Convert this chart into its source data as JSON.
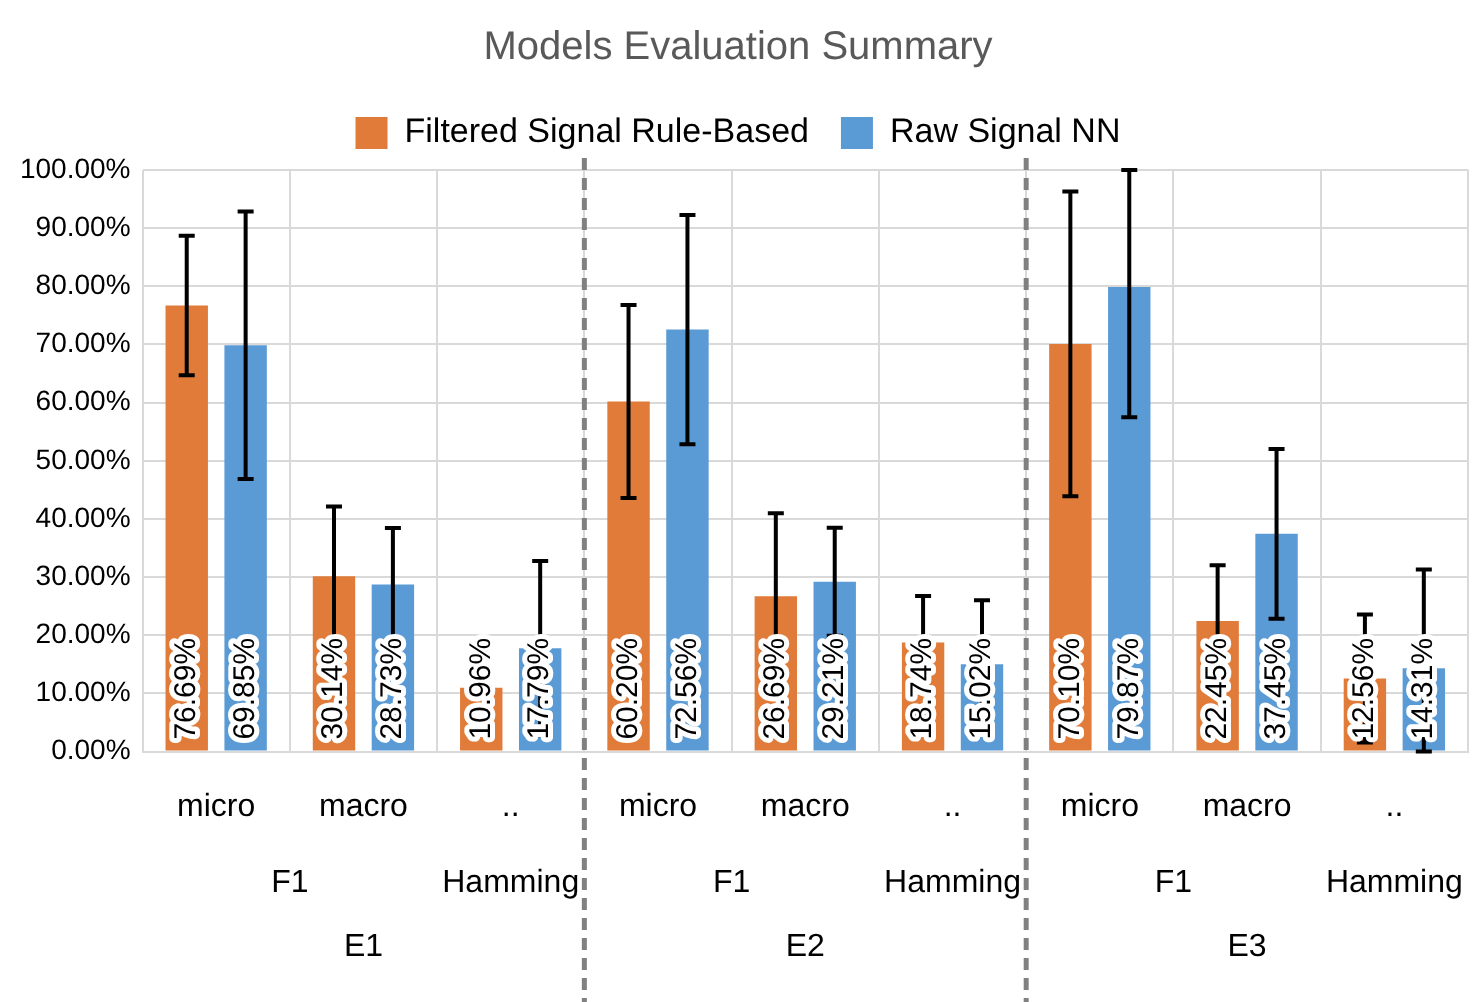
{
  "chart_data": {
    "type": "bar",
    "title": "Models Evaluation Summary",
    "categories": [
      "micro",
      "macro",
      "..",
      "micro",
      "macro",
      "..",
      "micro",
      "macro",
      ".."
    ],
    "series": [
      {
        "name": "Filtered Signal Rule-Based",
        "color": "#e07b39",
        "values": [
          76.69,
          30.14,
          10.96,
          60.2,
          26.69,
          18.74,
          70.1,
          22.45,
          12.56
        ],
        "value_labels": [
          "76.69%",
          "30.14%",
          "10.96%",
          "60.20%",
          "26.69%",
          "18.74%",
          "70.10%",
          "22.45%",
          "12.56%"
        ],
        "errors": [
          12,
          12,
          null,
          16.6,
          14.3,
          8,
          26.2,
          9.6,
          11
        ]
      },
      {
        "name": "Raw Signal NN",
        "color": "#5b9bd5",
        "values": [
          69.85,
          28.73,
          17.79,
          72.56,
          29.21,
          15.02,
          79.87,
          37.45,
          14.31
        ],
        "value_labels": [
          "69.85%",
          "28.73%",
          "17.79%",
          "72.56%",
          "29.21%",
          "15.02%",
          "79.87%",
          "37.45%",
          "14.31%"
        ],
        "errors": [
          23,
          9.7,
          15,
          19.7,
          9.3,
          11,
          [
            57.5,
            100
          ],
          14.6,
          [
            0,
            31.3
          ]
        ]
      }
    ],
    "ylim": [
      0,
      100
    ],
    "yticks": [
      {
        "value": 0,
        "label": "0.00%"
      },
      {
        "value": 10,
        "label": "10.00%"
      },
      {
        "value": 20,
        "label": "20.00%"
      },
      {
        "value": 30,
        "label": "30.00%"
      },
      {
        "value": 40,
        "label": "40.00%"
      },
      {
        "value": 50,
        "label": "50.00%"
      },
      {
        "value": 60,
        "label": "60.00%"
      },
      {
        "value": 70,
        "label": "70.00%"
      },
      {
        "value": 80,
        "label": "80.00%"
      },
      {
        "value": 90,
        "label": "90.00%"
      },
      {
        "value": 100,
        "label": "100.00%"
      }
    ],
    "grid": true,
    "legend": "top",
    "annotations": [
      "F1",
      "Hamming",
      "E1",
      "F1",
      "Hamming",
      "E2",
      "F1",
      "Hamming",
      "E3"
    ]
  }
}
